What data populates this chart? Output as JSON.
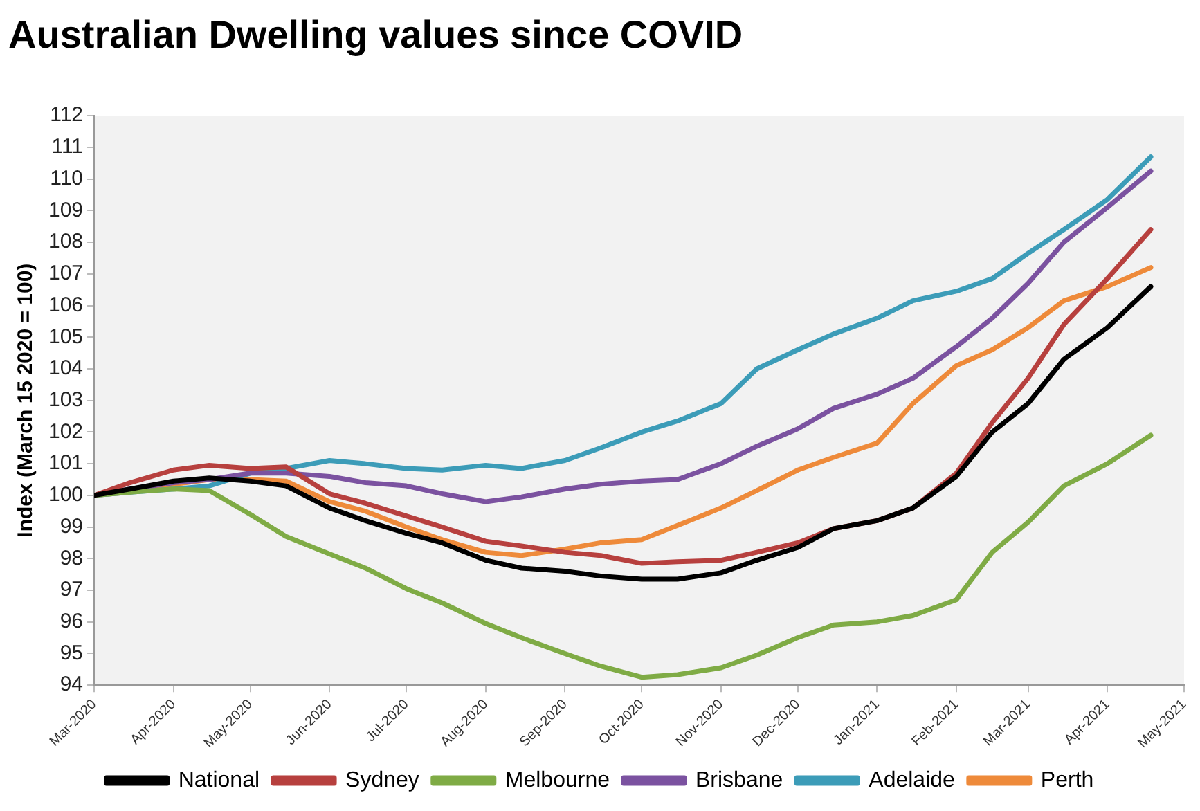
{
  "chart_data": {
    "type": "line",
    "title": "Australian Dwelling values since COVID",
    "ylabel": "Index (March 15 2020 = 100)",
    "x": [
      "2020-03-01",
      "2020-03-15",
      "2020-04-01",
      "2020-04-15",
      "2020-05-01",
      "2020-05-15",
      "2020-06-01",
      "2020-06-15",
      "2020-07-01",
      "2020-07-15",
      "2020-08-01",
      "2020-08-15",
      "2020-09-01",
      "2020-09-15",
      "2020-10-01",
      "2020-10-15",
      "2020-11-01",
      "2020-11-15",
      "2020-12-01",
      "2020-12-15",
      "2021-01-01",
      "2021-01-15",
      "2021-02-01",
      "2021-02-15",
      "2021-03-01",
      "2021-03-15",
      "2021-04-01",
      "2021-04-18"
    ],
    "series": [
      {
        "name": "National",
        "color": "#000000",
        "values": [
          100,
          100.2,
          100.45,
          100.55,
          100.45,
          100.3,
          99.6,
          99.2,
          98.8,
          98.5,
          97.95,
          97.7,
          97.6,
          97.45,
          97.35,
          97.35,
          97.55,
          97.95,
          98.35,
          98.95,
          99.2,
          99.6,
          100.6,
          102.0,
          102.9,
          104.3,
          105.3,
          106.6
        ]
      },
      {
        "name": "Sydney",
        "color": "#b7403e",
        "values": [
          100,
          100.4,
          100.8,
          100.95,
          100.85,
          100.9,
          100.05,
          99.75,
          99.35,
          99.0,
          98.55,
          98.4,
          98.2,
          98.1,
          97.85,
          97.9,
          97.95,
          98.2,
          98.5,
          98.95,
          99.2,
          99.6,
          100.7,
          102.3,
          103.7,
          105.4,
          106.85,
          108.4
        ]
      },
      {
        "name": "Melbourne",
        "color": "#7fab45",
        "values": [
          100,
          100.1,
          100.2,
          100.15,
          99.4,
          98.7,
          98.15,
          97.7,
          97.05,
          96.6,
          95.95,
          95.5,
          95.0,
          94.6,
          94.25,
          94.33,
          94.55,
          94.95,
          95.5,
          95.9,
          96.0,
          96.2,
          96.7,
          98.2,
          99.15,
          100.3,
          101.0,
          101.9
        ]
      },
      {
        "name": "Brisbane",
        "color": "#7b52a0",
        "values": [
          100,
          100.2,
          100.4,
          100.5,
          100.7,
          100.7,
          100.6,
          100.4,
          100.3,
          100.05,
          99.8,
          99.95,
          100.2,
          100.35,
          100.45,
          100.5,
          101.0,
          101.55,
          102.1,
          102.75,
          103.2,
          103.7,
          104.7,
          105.6,
          106.7,
          108.0,
          109.1,
          110.25
        ]
      },
      {
        "name": "Adelaide",
        "color": "#3c9cb8",
        "values": [
          100,
          100.1,
          100.2,
          100.3,
          100.7,
          100.85,
          101.1,
          101.0,
          100.85,
          100.8,
          100.95,
          100.85,
          101.1,
          101.5,
          102.0,
          102.35,
          102.9,
          104.0,
          104.6,
          105.1,
          105.6,
          106.15,
          106.45,
          106.85,
          107.65,
          108.4,
          109.35,
          110.7
        ]
      },
      {
        "name": "Perth",
        "color": "#ee8a3a",
        "values": [
          100,
          100.1,
          100.35,
          100.5,
          100.5,
          100.45,
          99.8,
          99.5,
          99.0,
          98.6,
          98.2,
          98.1,
          98.3,
          98.5,
          98.6,
          99.05,
          99.6,
          100.15,
          100.8,
          101.2,
          101.65,
          102.9,
          104.1,
          104.6,
          105.3,
          106.15,
          106.6,
          107.2
        ]
      }
    ],
    "xlim": [
      "2020-03-01",
      "2021-05-01"
    ],
    "xticks": [
      {
        "value": "2020-03-01",
        "label": "Mar-2020"
      },
      {
        "value": "2020-04-01",
        "label": "Apr-2020"
      },
      {
        "value": "2020-05-01",
        "label": "May-2020"
      },
      {
        "value": "2020-06-01",
        "label": "Jun-2020"
      },
      {
        "value": "2020-07-01",
        "label": "Jul-2020"
      },
      {
        "value": "2020-08-01",
        "label": "Aug-2020"
      },
      {
        "value": "2020-09-01",
        "label": "Sep-2020"
      },
      {
        "value": "2020-10-01",
        "label": "Oct-2020"
      },
      {
        "value": "2020-11-01",
        "label": "Nov-2020"
      },
      {
        "value": "2020-12-01",
        "label": "Dec-2020"
      },
      {
        "value": "2021-01-01",
        "label": "Jan-2021"
      },
      {
        "value": "2021-02-01",
        "label": "Feb-2021"
      },
      {
        "value": "2021-03-01",
        "label": "Mar-2021"
      },
      {
        "value": "2021-04-01",
        "label": "Apr-2021"
      },
      {
        "value": "2021-05-01",
        "label": "May-2021"
      }
    ],
    "ylim": [
      94,
      112
    ],
    "yticks": [
      94,
      95,
      96,
      97,
      98,
      99,
      100,
      101,
      102,
      103,
      104,
      105,
      106,
      107,
      108,
      109,
      110,
      111,
      112
    ],
    "grid": false,
    "legend": "bottom",
    "marker": "none",
    "line_style": "solid"
  }
}
